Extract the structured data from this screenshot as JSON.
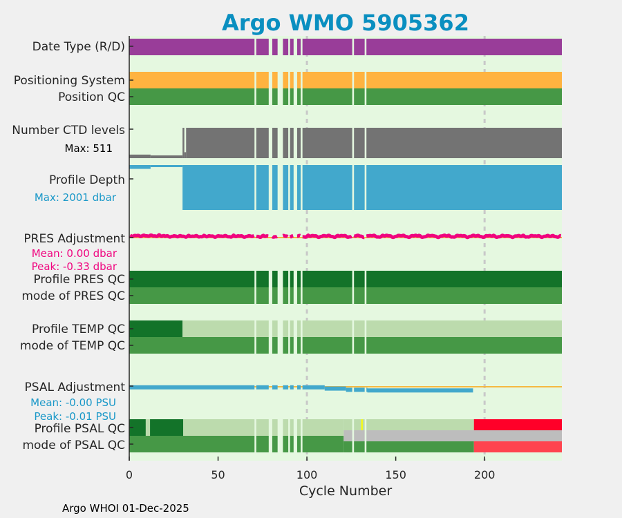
{
  "chart_data": {
    "type": "timeline",
    "title": "Argo WMO 5905362",
    "xlabel": "Cycle Number",
    "xlim": [
      0,
      243.5
    ],
    "xticks": [
      "0",
      "50",
      "100",
      "150",
      "200"
    ],
    "xtick_values": [
      0,
      50,
      100,
      150,
      200
    ],
    "reference_lines": [
      100,
      200
    ],
    "missing_cycles": [
      71,
      79,
      80,
      84,
      85,
      86,
      90,
      93,
      94,
      97,
      126,
      133
    ],
    "colors": {
      "background": "#e5f8e0",
      "delayed": "#993d99",
      "position_system": "#ffb340",
      "qc_good_mode": "#469846",
      "qc_good_profile": "#137329",
      "qc_partial": "#bcdbad",
      "qc_bad": "#ff0029",
      "qc_bad_mode": "#ff444f",
      "qc_missing": "#bdbdbd",
      "qc_flag_yellow": "#ffff00",
      "ctd_levels": "#737373",
      "depth": "#42a8cc",
      "pres_adj": "#f0047f",
      "zero_line": "#f5b941",
      "ref_line": "#c8c8c8"
    },
    "rows": [
      {
        "label": "Date Type (R/D)"
      },
      {
        "label": "Positioning System"
      },
      {
        "label": "Position QC"
      },
      {
        "label": "Number CTD levels",
        "note": "Max: 511"
      },
      {
        "label": "Profile Depth",
        "note": "Max: 2001 dbar"
      },
      {
        "label": "PRES Adjustment",
        "note": "Mean: 0.00 dbar",
        "note2": "Peak: -0.33 dbar"
      },
      {
        "label": "Profile PRES QC"
      },
      {
        "label": "mode of PRES QC"
      },
      {
        "label": "Profile TEMP QC"
      },
      {
        "label": "mode of TEMP QC"
      },
      {
        "label": "PSAL Adjustment",
        "note": "Mean: -0.00 PSU",
        "note2": "Peak: -0.01 PSU"
      },
      {
        "label": "Profile PSAL QC"
      },
      {
        "label": "mode of PSAL QC"
      }
    ],
    "ctd_levels_max": 511,
    "ctd_levels_segments": [
      {
        "from": 0,
        "to": 12,
        "value": 60
      },
      {
        "from": 12,
        "to": 30,
        "value": 20
      },
      {
        "from": 30,
        "to": 31,
        "value": 511
      },
      {
        "from": 31,
        "to": 32,
        "value": 100
      },
      {
        "from": 32,
        "to": 243.5,
        "value": 511
      }
    ],
    "depth_max": 2001,
    "depth_segments": [
      {
        "from": 0,
        "to": 12,
        "value": 170
      },
      {
        "from": 12,
        "to": 30,
        "value": 50
      },
      {
        "from": 30,
        "to": 243.5,
        "value": 2001
      }
    ],
    "psal_adj_segments": [
      {
        "from": 0,
        "to": 110,
        "value": -0.002
      },
      {
        "from": 110,
        "to": 122,
        "value": -0.004
      },
      {
        "from": 122,
        "to": 134,
        "value": -0.006
      },
      {
        "from": 134,
        "to": 193.5,
        "value": -0.007
      }
    ],
    "temp_qc_profile": [
      {
        "from": 0,
        "to": 30,
        "class": "A"
      },
      {
        "from": 30,
        "to": 243.5,
        "class": "partial"
      }
    ],
    "psal_qc_profile": [
      {
        "from": 0,
        "to": 9.3,
        "class": "A"
      },
      {
        "from": 9.3,
        "to": 11.7,
        "class": "partial"
      },
      {
        "from": 11.7,
        "to": 30.4,
        "class": "A"
      },
      {
        "from": 30.4,
        "to": 194,
        "class": "partial"
      },
      {
        "from": 194,
        "to": 243.5,
        "class": "F"
      }
    ],
    "psal_qc_flag_cycle": 131,
    "psal_qc_missing_from": 120.7,
    "psal_qc_mode_bad_from": 194
  },
  "footer": "Argo WHOI 01-Dec-2025"
}
